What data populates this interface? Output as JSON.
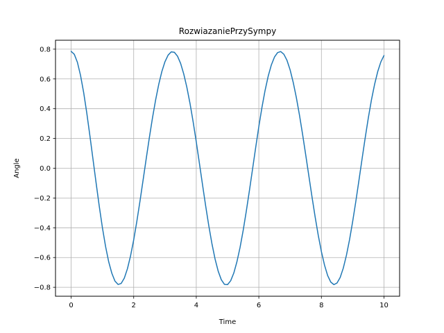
{
  "chart_data": {
    "type": "line",
    "title": "RozwiazaniePrzySympy",
    "xlabel": "Time",
    "ylabel": "Angle",
    "xlim": [
      -0.5,
      10.5
    ],
    "ylim": [
      -0.86,
      0.86
    ],
    "xticks": [
      0,
      2,
      4,
      6,
      8,
      10
    ],
    "xtick_labels": [
      "0",
      "2",
      "4",
      "6",
      "8",
      "10"
    ],
    "yticks": [
      -0.8,
      -0.6,
      -0.4,
      -0.2,
      0.0,
      0.2,
      0.4,
      0.6,
      0.8
    ],
    "ytick_labels": [
      "−0.8",
      "−0.6",
      "−0.4",
      "−0.2",
      "0.0",
      "0.2",
      "0.4",
      "0.6",
      "0.8"
    ],
    "grid": true,
    "series": [
      {
        "color": "#1f77b4",
        "x": [
          0.0,
          0.1,
          0.2,
          0.3,
          0.4,
          0.5,
          0.6,
          0.7,
          0.8,
          0.9,
          1.0,
          1.1,
          1.2,
          1.3,
          1.4,
          1.5,
          1.6,
          1.7,
          1.8,
          1.9,
          2.0,
          2.1,
          2.2,
          2.3,
          2.4,
          2.5,
          2.6,
          2.7,
          2.8,
          2.9,
          3.0,
          3.1,
          3.2,
          3.3,
          3.4,
          3.5,
          3.6,
          3.7,
          3.8,
          3.9,
          4.0,
          4.1,
          4.2,
          4.3,
          4.4,
          4.5,
          4.6,
          4.7,
          4.8,
          4.9,
          5.0,
          5.1,
          5.2,
          5.3,
          5.4,
          5.5,
          5.6,
          5.7,
          5.8,
          5.9,
          6.0,
          6.1,
          6.2,
          6.3,
          6.4,
          6.5,
          6.6,
          6.7,
          6.8,
          6.9,
          7.0,
          7.1,
          7.2,
          7.3,
          7.4,
          7.5,
          7.6,
          7.7,
          7.8,
          7.9,
          8.0,
          8.1,
          8.2,
          8.3,
          8.4,
          8.5,
          8.6,
          8.7,
          8.8,
          8.9,
          9.0,
          9.1,
          9.2,
          9.3,
          9.4,
          9.5,
          9.6,
          9.7,
          9.8,
          9.9,
          10.0
        ],
        "y": [
          0.785,
          0.766,
          0.712,
          0.624,
          0.509,
          0.371,
          0.218,
          0.058,
          -0.102,
          -0.257,
          -0.4,
          -0.525,
          -0.628,
          -0.705,
          -0.758,
          -0.781,
          -0.774,
          -0.738,
          -0.675,
          -0.588,
          -0.481,
          -0.357,
          -0.222,
          -0.08,
          0.064,
          0.205,
          0.338,
          0.458,
          0.563,
          0.65,
          0.716,
          0.76,
          0.782,
          0.779,
          0.753,
          0.704,
          0.633,
          0.543,
          0.435,
          0.312,
          0.177,
          0.034,
          -0.111,
          -0.253,
          -0.386,
          -0.506,
          -0.609,
          -0.691,
          -0.749,
          -0.78,
          -0.782,
          -0.756,
          -0.704,
          -0.628,
          -0.532,
          -0.417,
          -0.288,
          -0.149,
          -0.005,
          0.14,
          0.28,
          0.409,
          0.523,
          0.619,
          0.694,
          0.747,
          0.777,
          0.784,
          0.766,
          0.725,
          0.661,
          0.576,
          0.474,
          0.356,
          0.226,
          0.088,
          -0.053,
          -0.193,
          -0.327,
          -0.451,
          -0.56,
          -0.651,
          -0.721,
          -0.765,
          -0.782,
          -0.771,
          -0.734,
          -0.671,
          -0.585,
          -0.48,
          -0.358,
          -0.224,
          -0.082,
          0.062,
          0.204,
          0.338,
          0.459,
          0.563,
          0.649,
          0.714,
          0.757
        ]
      }
    ]
  }
}
